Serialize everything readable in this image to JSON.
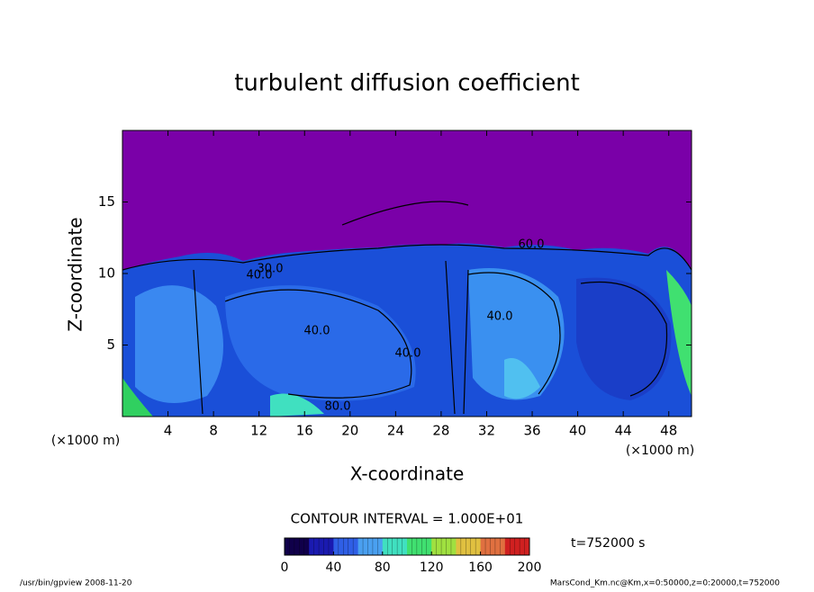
{
  "chart_data": {
    "type": "contour",
    "title": "turbulent diffusion coefficient",
    "x_label": "X-coordinate",
    "y_label": "Z-coordinate",
    "x_unit": "(×1000 m)",
    "y_unit": "(×1000 m)",
    "xlim": [
      0,
      50
    ],
    "xticks": [
      4,
      8,
      12,
      16,
      20,
      24,
      28,
      32,
      36,
      40,
      44,
      48
    ],
    "ylim": [
      0,
      20
    ],
    "yticks": [
      5,
      10,
      15
    ],
    "contour_interval": "CONTOUR INTERVAL = 1.000E+01",
    "contour_labels": [
      "40.0",
      "40.0",
      "40.0",
      "40.0",
      "60.0",
      "80.0",
      "30.0"
    ],
    "colorbar": {
      "lim": [
        0,
        200
      ],
      "ticks": [
        0,
        40,
        80,
        120,
        160,
        200
      ],
      "colors": [
        "#10004a",
        "#1a1ab0",
        "#2f5fe6",
        "#4aa0f0",
        "#40e0c0",
        "#40e070",
        "#a0e040",
        "#e0c040",
        "#e07040",
        "#d02020"
      ]
    },
    "time_label": "t=752000 s",
    "footer_left": "/usr/bin/gpview  2008-11-20",
    "footer_right": "MarsCond_Km.nc@Km,x=0:50000,z=0:20000,t=752000"
  }
}
